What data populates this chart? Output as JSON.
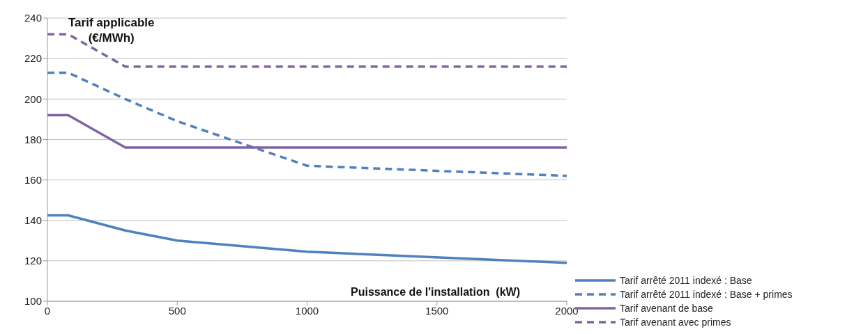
{
  "chart_data": {
    "type": "line",
    "ylabel": "Tarif applicable (€/MWh)",
    "xlabel": "Puissance de l'installation  (kW)",
    "xlim": [
      0,
      2000
    ],
    "xticks": [
      0,
      500,
      1000,
      1500,
      2000
    ],
    "ylim": [
      100,
      240
    ],
    "yticks": [
      100,
      120,
      140,
      160,
      180,
      200,
      220,
      240
    ],
    "grid": "y",
    "legend": "bottom right",
    "marker": "none",
    "series": [
      {
        "name": "Tarif arrêté 2011 indexé : Base",
        "color": "#4f81bd",
        "line_style": "solid",
        "x": [
          0,
          80,
          300,
          500,
          1000,
          2000
        ],
        "values": [
          142.5,
          142.5,
          135,
          130,
          124.5,
          119
        ]
      },
      {
        "name": "Tarif arrêté 2011 indexé : Base + primes",
        "color": "#4f81bd",
        "line_style": "dashed",
        "x": [
          0,
          80,
          300,
          500,
          1000,
          2000
        ],
        "values": [
          213,
          213,
          200,
          189,
          167,
          162
        ]
      },
      {
        "name": "Tarif avenant de base",
        "color": "#8064a2",
        "line_style": "solid",
        "x": [
          0,
          80,
          300,
          2000
        ],
        "values": [
          192,
          192,
          176,
          176
        ]
      },
      {
        "name": "Tarif avenant avec primes",
        "color": "#8064a2",
        "line_style": "dashed",
        "x": [
          0,
          80,
          300,
          2000
        ],
        "values": [
          232,
          232,
          216,
          216
        ]
      }
    ]
  }
}
